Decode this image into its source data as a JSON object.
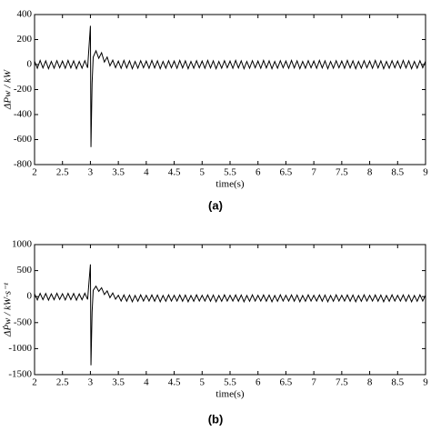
{
  "chart_data": [
    {
      "type": "line",
      "caption": "(a)",
      "x_label": "time(s)",
      "y_label": "ΔPw / kW",
      "color": "#000000",
      "xlim": [
        2,
        9
      ],
      "xticks": [
        2,
        2.5,
        3,
        3.5,
        4,
        4.5,
        5,
        5.5,
        6,
        6.5,
        7,
        7.5,
        8,
        8.5,
        9
      ],
      "ylim": [
        -800,
        400
      ],
      "yticks": [
        -800,
        -600,
        -400,
        -200,
        0,
        200,
        400
      ],
      "x": [
        2,
        2.05,
        2.1,
        2.15,
        2.2,
        2.25,
        2.3,
        2.35,
        2.4,
        2.45,
        2.5,
        2.55,
        2.6,
        2.65,
        2.7,
        2.75,
        2.8,
        2.85,
        2.9,
        2.95,
        3,
        3.01,
        3.03,
        3.05,
        3.1,
        3.15,
        3.2,
        3.25,
        3.3,
        3.35,
        3.4,
        3.45,
        3.5,
        3.55,
        3.6,
        3.65,
        3.7,
        3.75,
        3.8,
        3.85,
        3.9,
        3.95,
        4,
        4.05,
        4.1,
        4.15,
        4.2,
        4.25,
        4.3,
        4.35,
        4.4,
        4.45,
        4.5,
        4.55,
        4.6,
        4.65,
        4.7,
        4.75,
        4.8,
        4.85,
        4.9,
        4.95,
        5,
        5.05,
        5.1,
        5.15,
        5.2,
        5.25,
        5.3,
        5.35,
        5.4,
        5.45,
        5.5,
        5.55,
        5.6,
        5.65,
        5.7,
        5.75,
        5.8,
        5.85,
        5.9,
        5.95,
        6,
        6.05,
        6.1,
        6.15,
        6.2,
        6.25,
        6.3,
        6.35,
        6.4,
        6.45,
        6.5,
        6.55,
        6.6,
        6.65,
        6.7,
        6.75,
        6.8,
        6.85,
        6.9,
        6.95,
        7,
        7.05,
        7.1,
        7.15,
        7.2,
        7.25,
        7.3,
        7.35,
        7.4,
        7.45,
        7.5,
        7.55,
        7.6,
        7.65,
        7.7,
        7.75,
        7.8,
        7.85,
        7.9,
        7.95,
        8,
        8.05,
        8.1,
        8.15,
        8.2,
        8.25,
        8.3,
        8.35,
        8.4,
        8.45,
        8.5,
        8.55,
        8.6,
        8.65,
        8.7,
        8.75,
        8.8,
        8.85,
        8.9,
        8.95,
        9
      ],
      "values": [
        28,
        -30,
        33,
        -27,
        30,
        -33,
        25,
        -29,
        31,
        -26,
        28,
        -30,
        33,
        -27,
        30,
        -33,
        25,
        -29,
        31,
        -26,
        310,
        -660,
        -150,
        60,
        110,
        50,
        95,
        20,
        60,
        -10,
        35,
        -25,
        28,
        -30,
        33,
        -27,
        30,
        -33,
        25,
        -29,
        31,
        -26,
        28,
        -30,
        33,
        -27,
        30,
        -33,
        25,
        -29,
        31,
        -26,
        28,
        -30,
        33,
        -27,
        30,
        -33,
        25,
        -29,
        31,
        -26,
        28,
        -30,
        33,
        -27,
        30,
        -33,
        25,
        -29,
        31,
        -26,
        28,
        -30,
        33,
        -27,
        30,
        -33,
        25,
        -29,
        31,
        -26,
        28,
        -30,
        33,
        -27,
        30,
        -33,
        25,
        -29,
        31,
        -26,
        28,
        -30,
        33,
        -27,
        30,
        -33,
        25,
        -29,
        31,
        -26,
        28,
        -30,
        33,
        -27,
        30,
        -33,
        25,
        -29,
        31,
        -26,
        28,
        -30,
        33,
        -27,
        30,
        -33,
        25,
        -29,
        31,
        -26,
        28,
        -30,
        33,
        -27,
        30,
        -33,
        25,
        -29,
        31,
        -26,
        28,
        -30,
        33,
        -27,
        30,
        -33,
        25,
        -29,
        31,
        -26,
        28
      ]
    },
    {
      "type": "line",
      "caption": "(b)",
      "x_label": "time(s)",
      "y_label": "ΔṖw / kW·s⁻¹",
      "color": "#000000",
      "xlim": [
        2,
        9
      ],
      "xticks": [
        2,
        2.5,
        3,
        3.5,
        4,
        4.5,
        5,
        5.5,
        6,
        6.5,
        7,
        7.5,
        8,
        8.5,
        9
      ],
      "ylim": [
        -1500,
        1000
      ],
      "yticks": [
        -1500,
        -1000,
        -500,
        0,
        500,
        1000
      ],
      "x": [
        2,
        2.05,
        2.1,
        2.15,
        2.2,
        2.25,
        2.3,
        2.35,
        2.4,
        2.45,
        2.5,
        2.55,
        2.6,
        2.65,
        2.7,
        2.75,
        2.8,
        2.85,
        2.9,
        2.95,
        3,
        3.01,
        3.03,
        3.05,
        3.1,
        3.15,
        3.2,
        3.25,
        3.3,
        3.35,
        3.4,
        3.45,
        3.5,
        3.55,
        3.6,
        3.65,
        3.7,
        3.75,
        3.8,
        3.85,
        3.9,
        3.95,
        4,
        4.05,
        4.1,
        4.15,
        4.2,
        4.25,
        4.3,
        4.35,
        4.4,
        4.45,
        4.5,
        4.55,
        4.6,
        4.65,
        4.7,
        4.75,
        4.8,
        4.85,
        4.9,
        4.95,
        5,
        5.05,
        5.1,
        5.15,
        5.2,
        5.25,
        5.3,
        5.35,
        5.4,
        5.45,
        5.5,
        5.55,
        5.6,
        5.65,
        5.7,
        5.75,
        5.8,
        5.85,
        5.9,
        5.95,
        6,
        6.05,
        6.1,
        6.15,
        6.2,
        6.25,
        6.3,
        6.35,
        6.4,
        6.45,
        6.5,
        6.55,
        6.6,
        6.65,
        6.7,
        6.75,
        6.8,
        6.85,
        6.9,
        6.95,
        7,
        7.05,
        7.1,
        7.15,
        7.2,
        7.25,
        7.3,
        7.35,
        7.4,
        7.45,
        7.5,
        7.55,
        7.6,
        7.65,
        7.7,
        7.75,
        7.8,
        7.85,
        7.9,
        7.95,
        8,
        8.05,
        8.1,
        8.15,
        8.2,
        8.25,
        8.3,
        8.35,
        8.4,
        8.45,
        8.5,
        8.55,
        8.6,
        8.65,
        8.7,
        8.75,
        8.8,
        8.85,
        8.9,
        8.95,
        9
      ],
      "values": [
        55,
        -65,
        62,
        -58,
        60,
        -68,
        52,
        -60,
        64,
        -55,
        55,
        -65,
        62,
        -58,
        60,
        -68,
        52,
        -60,
        64,
        -55,
        620,
        -1320,
        -300,
        120,
        200,
        100,
        170,
        40,
        110,
        -20,
        70,
        -50,
        25,
        -85,
        32,
        -88,
        30,
        -98,
        22,
        -90,
        34,
        -85,
        25,
        -85,
        32,
        -88,
        30,
        -98,
        22,
        -90,
        34,
        -85,
        25,
        -85,
        32,
        -88,
        30,
        -98,
        22,
        -90,
        34,
        -85,
        25,
        -85,
        32,
        -88,
        30,
        -98,
        22,
        -90,
        34,
        -85,
        25,
        -85,
        32,
        -88,
        30,
        -98,
        22,
        -90,
        34,
        -85,
        25,
        -85,
        32,
        -88,
        30,
        -98,
        22,
        -90,
        34,
        -85,
        25,
        -85,
        32,
        -88,
        30,
        -98,
        22,
        -90,
        34,
        -85,
        25,
        -85,
        32,
        -88,
        30,
        -98,
        22,
        -90,
        34,
        -85,
        25,
        -85,
        32,
        -88,
        30,
        -98,
        22,
        -90,
        34,
        -85,
        25,
        -85,
        32,
        -88,
        30,
        -98,
        22,
        -90,
        34,
        -85,
        25,
        -85,
        32,
        -88,
        30,
        -98,
        22,
        -90,
        34,
        -85,
        25
      ]
    }
  ]
}
